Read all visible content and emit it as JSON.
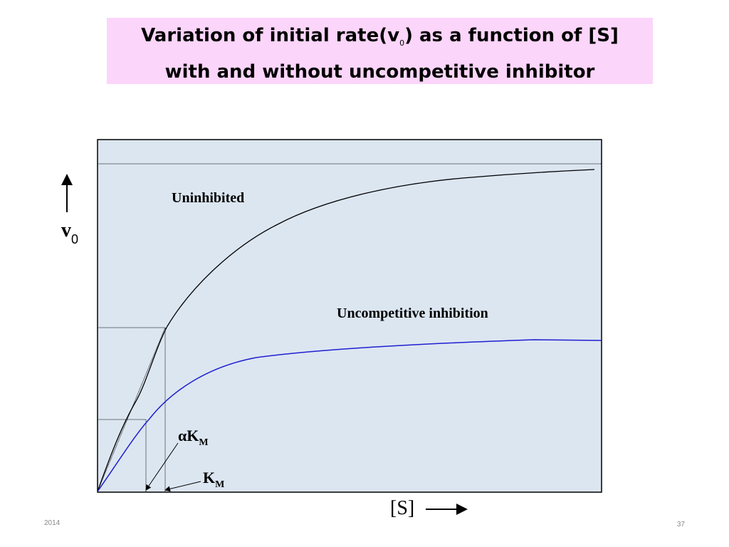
{
  "title": {
    "line1": {
      "before": "Variation of initial rate(v",
      "subscript": "0",
      "after": ") as a function of [S]"
    },
    "line2": "with and without uncompetitive inhibitor"
  },
  "diagram": {
    "y_axis_label": {
      "main": "v",
      "subscript": "0"
    },
    "x_axis_label": "[S]",
    "curve_labels": {
      "uninhibited": "Uninhibited",
      "inhibited": "Uncompetitive inhibition"
    },
    "markers": {
      "alpha_km": {
        "main": "αK",
        "subscript": "M"
      },
      "km": {
        "main": "K",
        "subscript": "M"
      }
    }
  },
  "footer": {
    "date": "2014",
    "page": "37"
  }
}
